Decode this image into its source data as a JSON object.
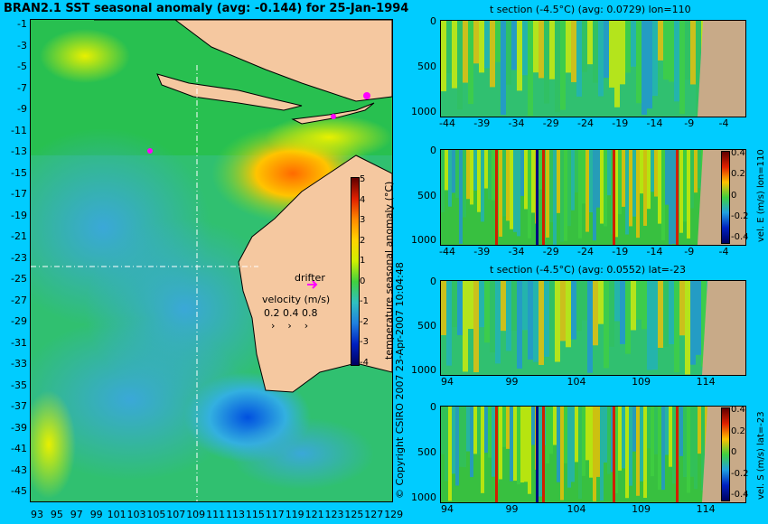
{
  "map": {
    "title": "BRAN2.1 SST seasonal anomaly (avg: -0.144) for 25-Jan-1994",
    "lat_ticks": [
      "-1",
      "-3",
      "-5",
      "-7",
      "-9",
      "-11",
      "-13",
      "-15",
      "-17",
      "-19",
      "-21",
      "-23",
      "-25",
      "-27",
      "-29",
      "-31",
      "-33",
      "-35",
      "-37",
      "-39",
      "-41",
      "-43",
      "-45"
    ],
    "lon_ticks": [
      "93",
      "95",
      "97",
      "99",
      "101",
      "103",
      "105",
      "107",
      "109",
      "111",
      "113",
      "115",
      "117",
      "119",
      "121",
      "123",
      "125",
      "127",
      "129"
    ],
    "section_lon": 110,
    "section_lat": -23,
    "colorbar": {
      "label": "temperature seasonal anomaly (°C)",
      "ticks": [
        "5",
        "4",
        "3",
        "2",
        "1",
        "0",
        "-1",
        "-2",
        "-3",
        "-4"
      ],
      "range": [
        -4,
        5
      ]
    },
    "drifter_label": "drifter",
    "velocity_title": "velocity (m/s)",
    "velocity_values": [
      "0.2",
      "0.4",
      "0.8"
    ],
    "land_color": "#f5c8a0",
    "drifter_color": "#ff00ff"
  },
  "copyright": "© Copyright CSIRO 2007   23-Apr-2007 10:04:48",
  "panels": [
    {
      "title": "t section (-4.5°C) (avg: 0.0729) lon=110",
      "y_ticks": [
        "0",
        "500",
        "1000"
      ],
      "x_ticks": [
        "-44",
        "-39",
        "-34",
        "-29",
        "-24",
        "-19",
        "-14",
        "-9",
        "-4"
      ]
    },
    {
      "title": "",
      "y_ticks": [
        "0",
        "500",
        "1000"
      ],
      "x_ticks": [
        "-44",
        "-39",
        "-34",
        "-29",
        "-24",
        "-19",
        "-14",
        "-9",
        "-4"
      ],
      "cbar_label": "vel. E (m/s) lon=110",
      "cbar_ticks": [
        "0.4",
        "0.2",
        "0",
        "-0.2",
        "-0.4"
      ]
    },
    {
      "title": "t section (-4.5°C) (avg: 0.0552) lat=-23",
      "y_ticks": [
        "0",
        "500",
        "1000"
      ],
      "x_ticks": [
        "94",
        "99",
        "104",
        "109",
        "114"
      ]
    },
    {
      "title": "",
      "y_ticks": [
        "0",
        "500",
        "1000"
      ],
      "x_ticks": [
        "94",
        "99",
        "104",
        "109",
        "114"
      ],
      "cbar_label": "vel. S (m/s) lat=-23",
      "cbar_ticks": [
        "0.4",
        "0.2",
        "0",
        "-0.2",
        "-0.4"
      ]
    }
  ]
}
